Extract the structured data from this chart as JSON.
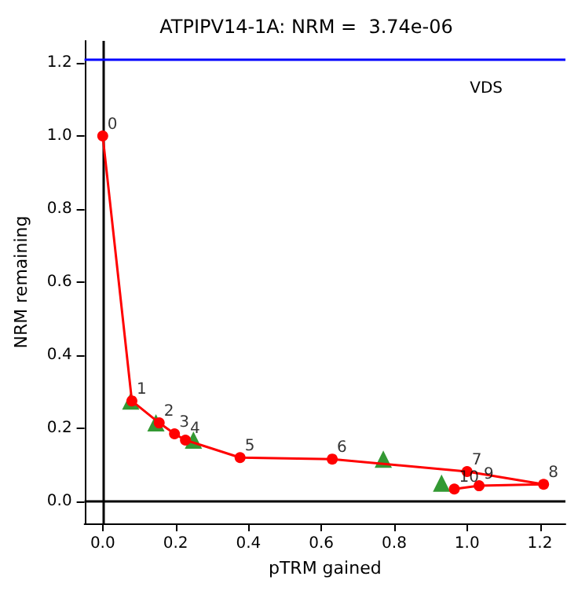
{
  "chart_data": {
    "type": "line",
    "title": "ATPIPV14-1A: NRM =  3.74e-06",
    "xlabel": "pTRM gained",
    "ylabel": "NRM remaining",
    "series": [
      {
        "color": "#ff0000",
        "marker": "circle",
        "x": [
          0,
          0.08,
          0.155,
          0.197,
          0.227,
          0.377,
          0.63,
          1.0,
          1.21,
          1.033,
          0.965
        ],
        "values": [
          1.0,
          0.275,
          0.215,
          0.185,
          0.168,
          0.12,
          0.116,
          0.082,
          0.047,
          0.043,
          0.034
        ]
      },
      {
        "type": "scatter",
        "color": "#008000",
        "marker": "triangle",
        "x": [
          0.077,
          0.146,
          0.249,
          0.77,
          0.93
        ],
        "values": [
          0.275,
          0.215,
          0.168,
          0.116,
          0.05
        ]
      }
    ],
    "xlim": [
      -0.05,
      1.27
    ],
    "ylim": [
      -0.06,
      1.26
    ],
    "xticks": [
      {
        "value": 0,
        "label": "0.0"
      },
      {
        "value": 0.2,
        "label": "0.2"
      },
      {
        "value": 0.4,
        "label": "0.4"
      },
      {
        "value": 0.6,
        "label": "0.6"
      },
      {
        "value": 0.8,
        "label": "0.8"
      },
      {
        "value": 1.0,
        "label": "1.0"
      },
      {
        "value": 1.2,
        "label": "1.2"
      }
    ],
    "yticks": [
      {
        "value": 0,
        "label": "0.0"
      },
      {
        "value": 0.2,
        "label": "0.2"
      },
      {
        "value": 0.4,
        "label": "0.4"
      },
      {
        "value": 0.6,
        "label": "0.6"
      },
      {
        "value": 0.8,
        "label": "0.8"
      },
      {
        "value": 1.0,
        "label": "1.0"
      },
      {
        "value": 1.2,
        "label": "1.2"
      }
    ],
    "annotations": [
      {
        "text": "0",
        "x": 0,
        "y": 1.0
      },
      {
        "text": "1",
        "x": 0.08,
        "y": 0.275
      },
      {
        "text": "2",
        "x": 0.155,
        "y": 0.215
      },
      {
        "text": "3",
        "x": 0.197,
        "y": 0.185
      },
      {
        "text": "4",
        "x": 0.227,
        "y": 0.168
      },
      {
        "text": "5",
        "x": 0.377,
        "y": 0.12
      },
      {
        "text": "6",
        "x": 0.63,
        "y": 0.116
      },
      {
        "text": "7",
        "x": 1.0,
        "y": 0.082
      },
      {
        "text": "8",
        "x": 1.21,
        "y": 0.047
      },
      {
        "text": "9",
        "x": 1.033,
        "y": 0.043
      },
      {
        "text": "10",
        "x": 0.965,
        "y": 0.034
      }
    ],
    "ref_lines": [
      {
        "axis": "x",
        "value": 0,
        "color": "#000000"
      },
      {
        "axis": "y",
        "value": 0,
        "color": "#000000"
      },
      {
        "axis": "y",
        "value": 1.21,
        "color": "#0000ff",
        "label": "VDS"
      }
    ],
    "grid": false
  }
}
